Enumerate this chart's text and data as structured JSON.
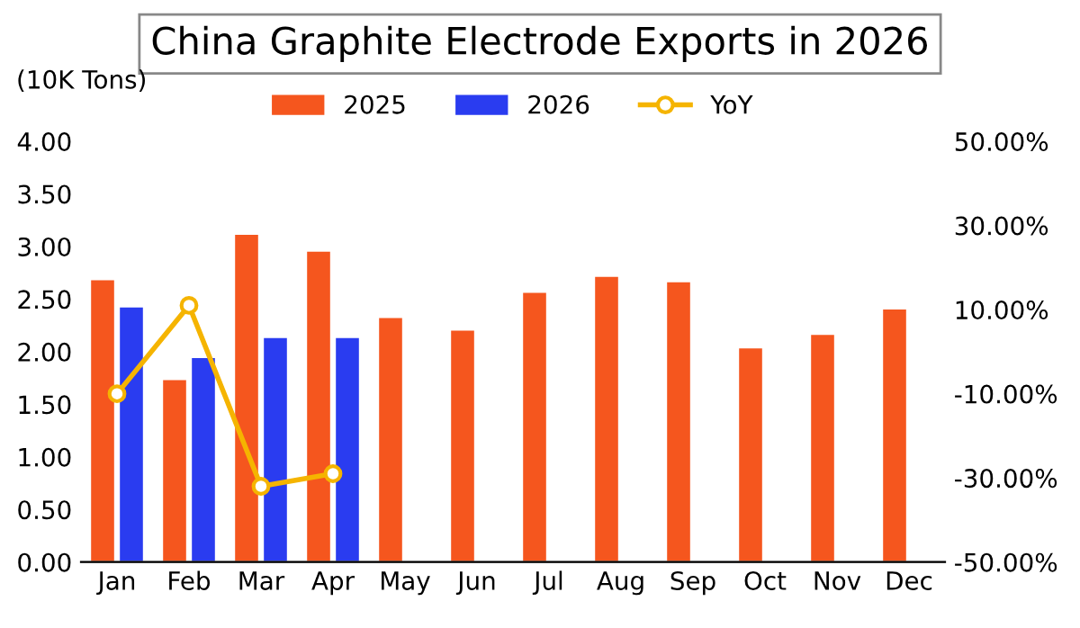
{
  "chart_data": {
    "type": "bar",
    "title": "China Graphite Electrode Exports in 2026",
    "ylabel": "(10K Tons)",
    "categories": [
      "Jan",
      "Feb",
      "Mar",
      "Apr",
      "May",
      "Jun",
      "Jul",
      "Aug",
      "Sep",
      "Oct",
      "Nov",
      "Dec"
    ],
    "series": [
      {
        "name": "2025",
        "color": "#f5561e",
        "values": [
          2.68,
          1.73,
          3.11,
          2.95,
          2.32,
          2.2,
          2.56,
          2.71,
          2.66,
          2.03,
          2.16,
          2.4
        ]
      },
      {
        "name": "2026",
        "color": "#2a3cf0",
        "values": [
          2.42,
          1.94,
          2.13,
          2.13,
          null,
          null,
          null,
          null,
          null,
          null,
          null,
          null
        ]
      },
      {
        "name": "YoY",
        "type": "line",
        "axis": "y2",
        "color": "#f5b400",
        "marker": "circle",
        "values": [
          -10,
          11,
          -32,
          -29,
          null,
          null,
          null,
          null,
          null,
          null,
          null,
          null
        ]
      }
    ],
    "ylim": [
      0,
      4
    ],
    "yticks": [
      {
        "value": 0,
        "label": "0.00"
      },
      {
        "value": 0.5,
        "label": "0.50"
      },
      {
        "value": 1,
        "label": "1.00"
      },
      {
        "value": 1.5,
        "label": "1.50"
      },
      {
        "value": 2,
        "label": "2.00"
      },
      {
        "value": 2.5,
        "label": "2.50"
      },
      {
        "value": 3,
        "label": "3.00"
      },
      {
        "value": 3.5,
        "label": "3.50"
      },
      {
        "value": 4,
        "label": "4.00"
      }
    ],
    "y2lim": [
      -50,
      50
    ],
    "y2ticks": [
      {
        "value": -50,
        "label": "-50.00%"
      },
      {
        "value": -30,
        "label": "-30.00%"
      },
      {
        "value": -10,
        "label": "-10.00%"
      },
      {
        "value": 10,
        "label": "10.00%"
      },
      {
        "value": 30,
        "label": "30.00%"
      },
      {
        "value": 50,
        "label": "50.00%"
      }
    ],
    "legend": "top",
    "grid": false
  }
}
